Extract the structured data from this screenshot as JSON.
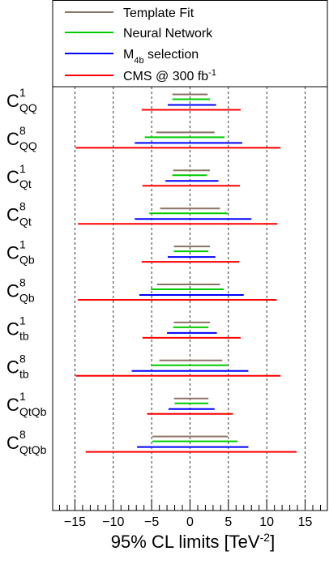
{
  "chart_data": {
    "type": "interval",
    "title": "",
    "xlabel": "95% CL limits [TeV",
    "xlabel_sup": "-2",
    "xlabel_close": "]",
    "xlim": [
      -17.9,
      17.9
    ],
    "xticks": [
      -15,
      -10,
      -5,
      0,
      5,
      10,
      15
    ],
    "xtick_labels": [
      "−15",
      "−10",
      "−5",
      "0",
      "5",
      "10",
      "15"
    ],
    "grid": "dashed vertical at major ticks",
    "legend": {
      "placement": "top",
      "entries": [
        {
          "label": "Template Fit",
          "color": "#8B7366"
        },
        {
          "label": "Neural Network",
          "color": "#00CC00"
        },
        {
          "label": "M",
          "sub": "4b",
          "suffix": " selection",
          "color": "#0000FF"
        },
        {
          "label": "CMS @ 300 fb",
          "sup": "-1",
          "color": "#FF0000"
        }
      ]
    },
    "series": [
      {
        "name": "Template Fit",
        "color": "#8B7366"
      },
      {
        "name": "Neural Network",
        "color": "#00CC00"
      },
      {
        "name": "M4b selection",
        "color": "#0000FF"
      },
      {
        "name": "CMS @ 300 fb-1",
        "color": "#FF0000"
      }
    ],
    "categories": [
      {
        "base": "C",
        "sup": "1",
        "sub": "QQ",
        "intervals": [
          [
            -2.3,
            2.3
          ],
          [
            -2.3,
            2.6
          ],
          [
            -2.9,
            3.4
          ],
          [
            -6.3,
            6.6
          ]
        ]
      },
      {
        "base": "C",
        "sup": "8",
        "sub": "QQ",
        "intervals": [
          [
            -4.4,
            3.2
          ],
          [
            -5.9,
            4.5
          ],
          [
            -7.2,
            6.8
          ],
          [
            -14.9,
            11.8
          ]
        ]
      },
      {
        "base": "C",
        "sup": "1",
        "sub": "Qt",
        "intervals": [
          [
            -2.2,
            2.6
          ],
          [
            -2.3,
            2.2
          ],
          [
            -3.2,
            3.7
          ],
          [
            -6.2,
            6.5
          ]
        ]
      },
      {
        "base": "C",
        "sup": "8",
        "sub": "Qt",
        "intervals": [
          [
            -3.9,
            3.9
          ],
          [
            -5.3,
            4.9
          ],
          [
            -7.2,
            8.0
          ],
          [
            -14.6,
            11.4
          ]
        ]
      },
      {
        "base": "C",
        "sup": "1",
        "sub": "Qb",
        "intervals": [
          [
            -2.1,
            2.6
          ],
          [
            -2.1,
            2.4
          ],
          [
            -2.9,
            3.3
          ],
          [
            -6.3,
            6.4
          ]
        ]
      },
      {
        "base": "C",
        "sup": "8",
        "sub": "Qb",
        "intervals": [
          [
            -4.3,
            3.9
          ],
          [
            -5.1,
            4.4
          ],
          [
            -6.6,
            7.0
          ],
          [
            -14.6,
            11.3
          ]
        ]
      },
      {
        "base": "C",
        "sup": "1",
        "sub": "tb",
        "intervals": [
          [
            -2.1,
            2.6
          ],
          [
            -2.2,
            2.4
          ],
          [
            -3.0,
            3.5
          ],
          [
            -6.2,
            6.6
          ]
        ]
      },
      {
        "base": "C",
        "sup": "8",
        "sub": "tb",
        "intervals": [
          [
            -4.0,
            4.2
          ],
          [
            -5.1,
            4.9
          ],
          [
            -7.6,
            7.6
          ],
          [
            -14.9,
            11.8
          ]
        ]
      },
      {
        "base": "C",
        "sup": "1",
        "sub": "QtQb",
        "intervals": [
          [
            -2.1,
            2.4
          ],
          [
            -2.0,
            2.4
          ],
          [
            -2.8,
            3.2
          ],
          [
            -5.6,
            5.6
          ]
        ]
      },
      {
        "base": "C",
        "sup": "8",
        "sub": "QtQb",
        "intervals": [
          [
            -4.9,
            4.9
          ],
          [
            -4.9,
            6.2
          ],
          [
            -6.9,
            7.6
          ],
          [
            -13.6,
            13.9
          ]
        ]
      }
    ]
  }
}
